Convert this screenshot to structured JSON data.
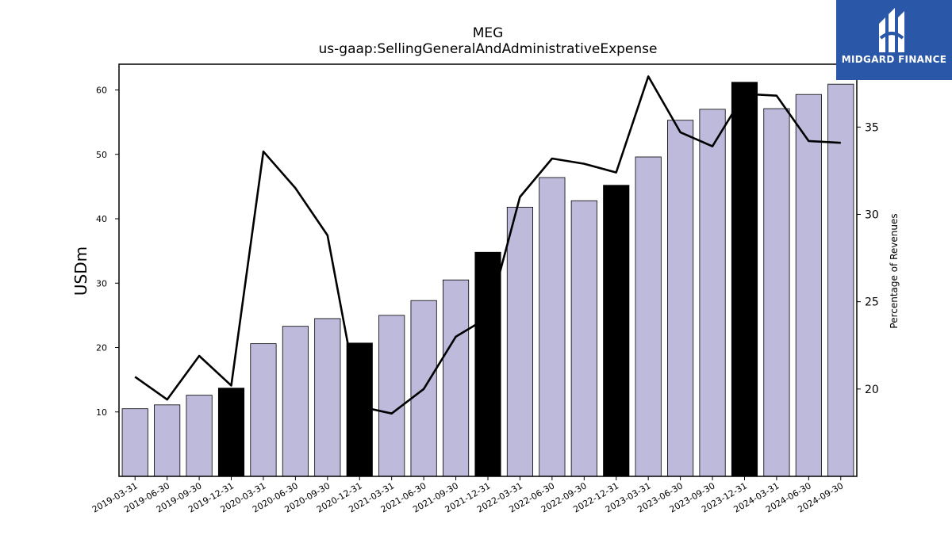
{
  "chart_data": {
    "type": "bar",
    "title": "MEG",
    "subtitle": "us-gaap:SellingGeneralAndAdministrativeExpense",
    "ylabel": "USDm",
    "y2label": "Percentage of Revenues",
    "ylim": [
      0,
      64
    ],
    "y2lim": [
      15,
      38.6
    ],
    "yticks": [
      10,
      20,
      30,
      40,
      50,
      60
    ],
    "y2ticks": [
      20,
      25,
      30,
      35
    ],
    "categories": [
      "2019-03-31",
      "2019-06-30",
      "2019-09-30",
      "2019-12-31",
      "2020-03-31",
      "2020-06-30",
      "2020-09-30",
      "2020-12-31",
      "2021-03-31",
      "2021-06-30",
      "2021-09-30",
      "2021-12-31",
      "2022-03-31",
      "2022-06-30",
      "2022-09-30",
      "2022-12-31",
      "2023-03-31",
      "2023-06-30",
      "2023-09-30",
      "2023-12-31",
      "2024-03-31",
      "2024-06-30",
      "2024-09-30"
    ],
    "series": [
      {
        "type": "bar",
        "axis": "left",
        "values": [
          10.5,
          11.1,
          12.6,
          13.7,
          20.6,
          23.3,
          24.5,
          20.7,
          25.0,
          27.3,
          30.5,
          34.8,
          41.8,
          46.4,
          42.8,
          45.2,
          49.6,
          55.3,
          57.0,
          61.2,
          57.1,
          59.3,
          60.9
        ]
      },
      {
        "type": "line",
        "axis": "right",
        "values": [
          20.7,
          19.4,
          21.9,
          20.2,
          33.6,
          31.5,
          28.8,
          19.0,
          18.6,
          20.0,
          23.0,
          24.1,
          31.0,
          33.2,
          32.9,
          32.4,
          37.9,
          34.7,
          33.9,
          36.9,
          36.8,
          34.2,
          34.1
        ]
      }
    ],
    "highlight_categories": [
      "2019-12-31",
      "2020-12-31",
      "2021-12-31",
      "2022-12-31",
      "2023-12-31"
    ],
    "colors": {
      "bar": "#bdbadb",
      "bar_highlight": "#000000",
      "line": "#000000"
    }
  },
  "logo": {
    "text": "MIDGARD FINANCE",
    "color": "#2a57a8"
  }
}
